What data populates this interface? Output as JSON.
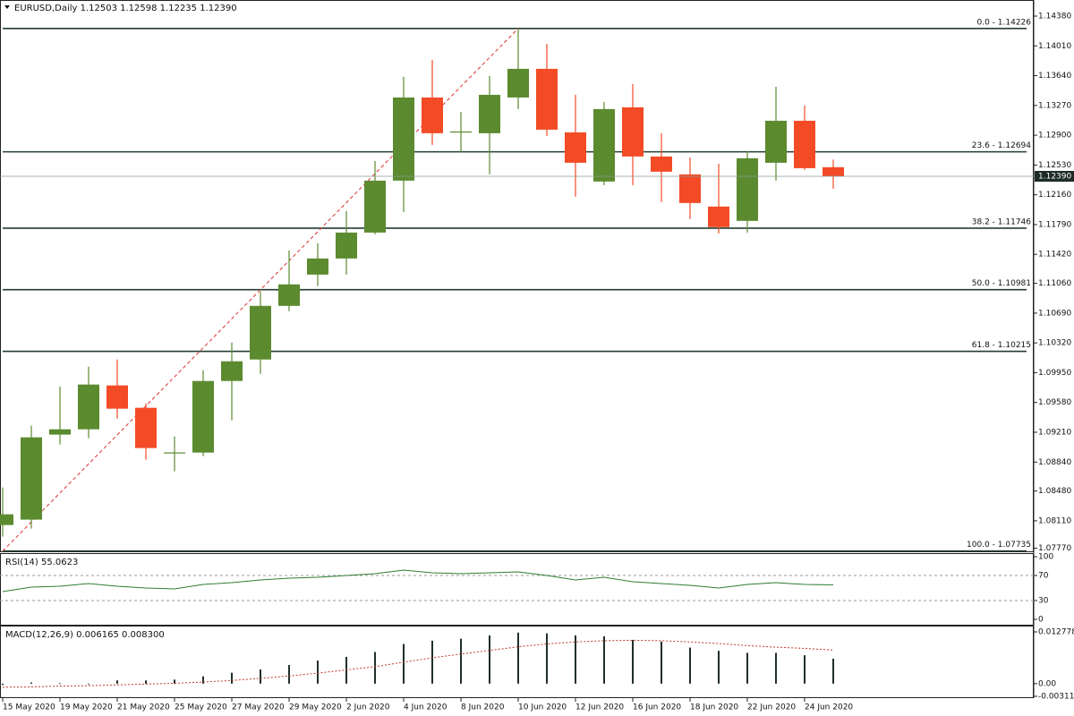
{
  "chart_data": [
    {
      "type": "candlestick",
      "title": "EURUSD,Daily 1.12503 1.12598 1.12235 1.12390",
      "categories": [
        "15 May 2020",
        null,
        "19 May 2020",
        null,
        "21 May 2020",
        null,
        "25 May 2020",
        null,
        "27 May 2020",
        null,
        "29 May 2020",
        null,
        "2 Jun 2020",
        null,
        "4 Jun 2020",
        null,
        "8 Jun 2020",
        null,
        "10 Jun 2020",
        null,
        "12 Jun 2020",
        null,
        "16 Jun 2020",
        null,
        "18 Jun 2020",
        null,
        "22 Jun 2020",
        null,
        "24 Jun 2020",
        null
      ],
      "open": [
        1.08058,
        1.08125,
        1.09181,
        1.09247,
        1.09792,
        1.09514,
        1.08958,
        1.08958,
        1.09847,
        1.10114,
        1.1078,
        1.11169,
        1.11369,
        1.11691,
        1.12336,
        1.13369,
        1.12936,
        1.12925,
        1.13369,
        1.13725,
        1.12936,
        1.12325,
        1.13247,
        1.12636,
        1.12414,
        1.12014,
        1.11836,
        1.12558,
        1.1308,
        1.12503
      ],
      "high": [
        1.08524,
        1.09292,
        1.0978,
        1.10025,
        1.10114,
        1.09569,
        1.09158,
        1.0998,
        1.10325,
        1.10958,
        1.11469,
        1.11558,
        1.11958,
        1.1258,
        1.13625,
        1.13836,
        1.13191,
        1.13636,
        1.14213,
        1.14036,
        1.13402,
        1.13313,
        1.13536,
        1.12925,
        1.12625,
        1.12547,
        1.12703,
        1.13503,
        1.13269,
        1.12598
      ],
      "low": [
        1.07913,
        1.08014,
        1.09058,
        1.09136,
        1.0938,
        1.08869,
        1.08725,
        1.08914,
        1.09358,
        1.09936,
        1.10714,
        1.11025,
        1.11169,
        1.11669,
        1.11947,
        1.1278,
        1.12691,
        1.12414,
        1.13225,
        1.12891,
        1.12136,
        1.1228,
        1.1228,
        1.12069,
        1.11858,
        1.1168,
        1.11691,
        1.12336,
        1.12469,
        1.12235
      ],
      "close": [
        1.08191,
        1.09147,
        1.09247,
        1.09803,
        1.09503,
        1.09014,
        1.0896,
        1.09847,
        1.10092,
        1.1078,
        1.11047,
        1.11369,
        1.11691,
        1.12336,
        1.13369,
        1.12925,
        1.12947,
        1.13402,
        1.13725,
        1.12969,
        1.12558,
        1.13225,
        1.12636,
        1.12447,
        1.12058,
        1.11758,
        1.12614,
        1.1308,
        1.12491,
        1.1239
      ],
      "up_color": "#5b8a2f",
      "down_color": "#f24b26",
      "ylim": [
        1.0772,
        1.1458
      ],
      "yticks": [
        {
          "value": 1.1438,
          "label": "1.14380"
        },
        {
          "value": 1.1401,
          "label": "1.14010"
        },
        {
          "value": 1.1364,
          "label": "1.13640"
        },
        {
          "value": 1.1327,
          "label": "1.13270"
        },
        {
          "value": 1.129,
          "label": "1.12900"
        },
        {
          "value": 1.1253,
          "label": "1.12530"
        },
        {
          "value": 1.1216,
          "label": "1.12160"
        },
        {
          "value": 1.1179,
          "label": "1.11790"
        },
        {
          "value": 1.1142,
          "label": "1.11420"
        },
        {
          "value": 1.1106,
          "label": "1.11060"
        },
        {
          "value": 1.1069,
          "label": "1.10690"
        },
        {
          "value": 1.1032,
          "label": "1.10320"
        },
        {
          "value": 1.0995,
          "label": "1.09950"
        },
        {
          "value": 1.0958,
          "label": "1.09580"
        },
        {
          "value": 1.0921,
          "label": "1.09210"
        },
        {
          "value": 1.0884,
          "label": "1.08840"
        },
        {
          "value": 1.0848,
          "label": "1.08480"
        },
        {
          "value": 1.0811,
          "label": "1.08110"
        },
        {
          "value": 1.0777,
          "label": "1.07770"
        }
      ],
      "fib_levels": [
        {
          "value": 1.14226,
          "label": "0.0 - 1.14226"
        },
        {
          "value": 1.12694,
          "label": "23.6 - 1.12694"
        },
        {
          "value": 1.11746,
          "label": "38.2 - 1.11746"
        },
        {
          "value": 1.10981,
          "label": "50.0 - 1.10981"
        },
        {
          "value": 1.10215,
          "label": "61.8 - 1.10215"
        },
        {
          "value": 1.07735,
          "label": "100.0 - 1.07735"
        }
      ],
      "fib_color": "#233d30",
      "trend_color": "#e03030",
      "last_price": {
        "value": 1.1239,
        "label": "1.12390"
      }
    },
    {
      "type": "line",
      "title": "RSI(14) 55.0623",
      "values": [
        44.3,
        51.4,
        52.9,
        57.1,
        52.9,
        50,
        48.6,
        55.7,
        58.6,
        62.9,
        65.7,
        67.1,
        70,
        72.9,
        78.6,
        74.3,
        72.9,
        74.3,
        75.7,
        70,
        62.9,
        67.1,
        60,
        57.1,
        54.3,
        50,
        55.7,
        58.6,
        55.7,
        55.0623
      ],
      "color": "#2e7d32",
      "ylim": [
        0,
        100
      ],
      "yticks": [
        100,
        70,
        30,
        0
      ],
      "levels": [
        70,
        30
      ]
    },
    {
      "type": "bar",
      "title": "MACD(12,26,9) 0.006165 0.008300",
      "values": [
        -0.0003,
        0.0003,
        0.0001,
        -0.0001,
        0.0008,
        0.0008,
        0.001,
        0.0018,
        0.0027,
        0.0035,
        0.0046,
        0.0057,
        0.0066,
        0.0078,
        0.0098,
        0.0106,
        0.0111,
        0.0119,
        0.0126,
        0.0124,
        0.0119,
        0.0117,
        0.0108,
        0.0104,
        0.0089,
        0.0081,
        0.0076,
        0.0076,
        0.007,
        0.006165
      ],
      "signal": [
        -0.0009,
        -0.0008,
        -0.0006,
        -0.0005,
        -0.0003,
        -0.0001,
        0.0001,
        0.0004,
        0.0008,
        0.0013,
        0.0019,
        0.0026,
        0.0034,
        0.0042,
        0.0053,
        0.0064,
        0.0073,
        0.0082,
        0.0091,
        0.0098,
        0.0103,
        0.0106,
        0.0107,
        0.0106,
        0.0103,
        0.0099,
        0.0094,
        0.009,
        0.0087,
        0.0083
      ],
      "color": "#1f2f2a",
      "signal_color": "#c0392b",
      "ylim": [
        -0.003118,
        0.012778
      ],
      "yticks": [
        0.012778,
        {
          "value": 0,
          "label": "0.00"
        },
        -0.003118
      ]
    }
  ]
}
